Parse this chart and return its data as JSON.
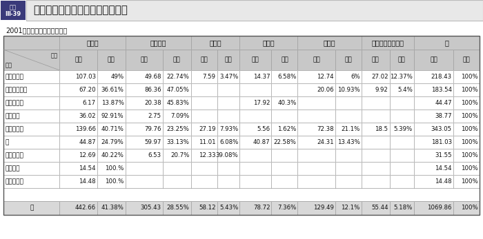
{
  "title": "一般プロジェクト無償地域別配分",
  "subtitle": "2001年度（予算ベース実績）",
  "regions": [
    "",
    "アジア",
    "アフリカ",
    "大洋州",
    "中　東",
    "中南米",
    "東欧・中央アジア",
    "計"
  ],
  "subheaders": [
    "金額",
    "割合",
    "金額",
    "割合",
    "金額",
    "割合",
    "金額",
    "割合",
    "金額",
    "割合",
    "金額",
    "割合",
    "金額",
    "割合"
  ],
  "rows": [
    [
      "医療・保健",
      "107.03",
      "49%",
      "49.68",
      "22.74%",
      "7.59",
      "3.47%",
      "14.37",
      "6.58%",
      "12.74",
      "6%",
      "27.02",
      "12.37%",
      "218.43",
      "100%"
    ],
    [
      "教育・人造り",
      "67.20",
      "36.61%",
      "86.36",
      "47.05%",
      "",
      "",
      "",
      "",
      "20.06",
      "10.93%",
      "9.92",
      "5.4%",
      "183.54",
      "100%"
    ],
    [
      "農　林　業",
      "6.17",
      "13.87%",
      "20.38",
      "45.83%",
      "",
      "",
      "17.92",
      "40.3%",
      "",
      "",
      "",
      "",
      "44.47",
      "100%"
    ],
    [
      "環　　境",
      "36.02",
      "92.91%",
      "2.75",
      "7.09%",
      "",
      "",
      "",
      "",
      "",
      "",
      "",
      "",
      "38.77",
      "100%"
    ],
    [
      "通信・運輸",
      "139.66",
      "40.71%",
      "79.76",
      "23.25%",
      "27.19",
      "7.93%",
      "5.56",
      "1.62%",
      "72.38",
      "21.1%",
      "18.5",
      "5.39%",
      "343.05",
      "100%"
    ],
    [
      "水",
      "44.87",
      "24.79%",
      "59.97",
      "33.13%",
      "11.01",
      "6.08%",
      "40.87",
      "22.58%",
      "24.31",
      "13.43%",
      "",
      "",
      "181.03",
      "100%"
    ],
    [
      "エネルギー",
      "12.69",
      "40.22%",
      "6.53",
      "20.7%",
      "12.33",
      "39.08%",
      "",
      "",
      "",
      "",
      "",
      "",
      "31.55",
      "100%"
    ],
    [
      "地　　雷",
      "14.54",
      "100.%",
      "",
      "",
      "",
      "",
      "",
      "",
      "",
      "",
      "",
      "",
      "14.54",
      "100%"
    ],
    [
      "そ　の　他",
      "14.48",
      "100.%",
      "",
      "",
      "",
      "",
      "",
      "",
      "",
      "",
      "",
      "",
      "14.48",
      "100%"
    ]
  ],
  "total_row": [
    "計",
    "442.66",
    "41.38%",
    "305.43",
    "28.55%",
    "58.12",
    "5.43%",
    "78.72",
    "7.36%",
    "129.49",
    "12.1%",
    "55.44",
    "5.18%",
    "1069.86",
    "100%"
  ],
  "header_bg": "#c8c8c8",
  "total_bg": "#d8d8d8",
  "row_bg": "#ffffff",
  "border_color": "#999999",
  "title_label_bg": "#4a4a8a",
  "title_area_bg": "#e0e0e0"
}
